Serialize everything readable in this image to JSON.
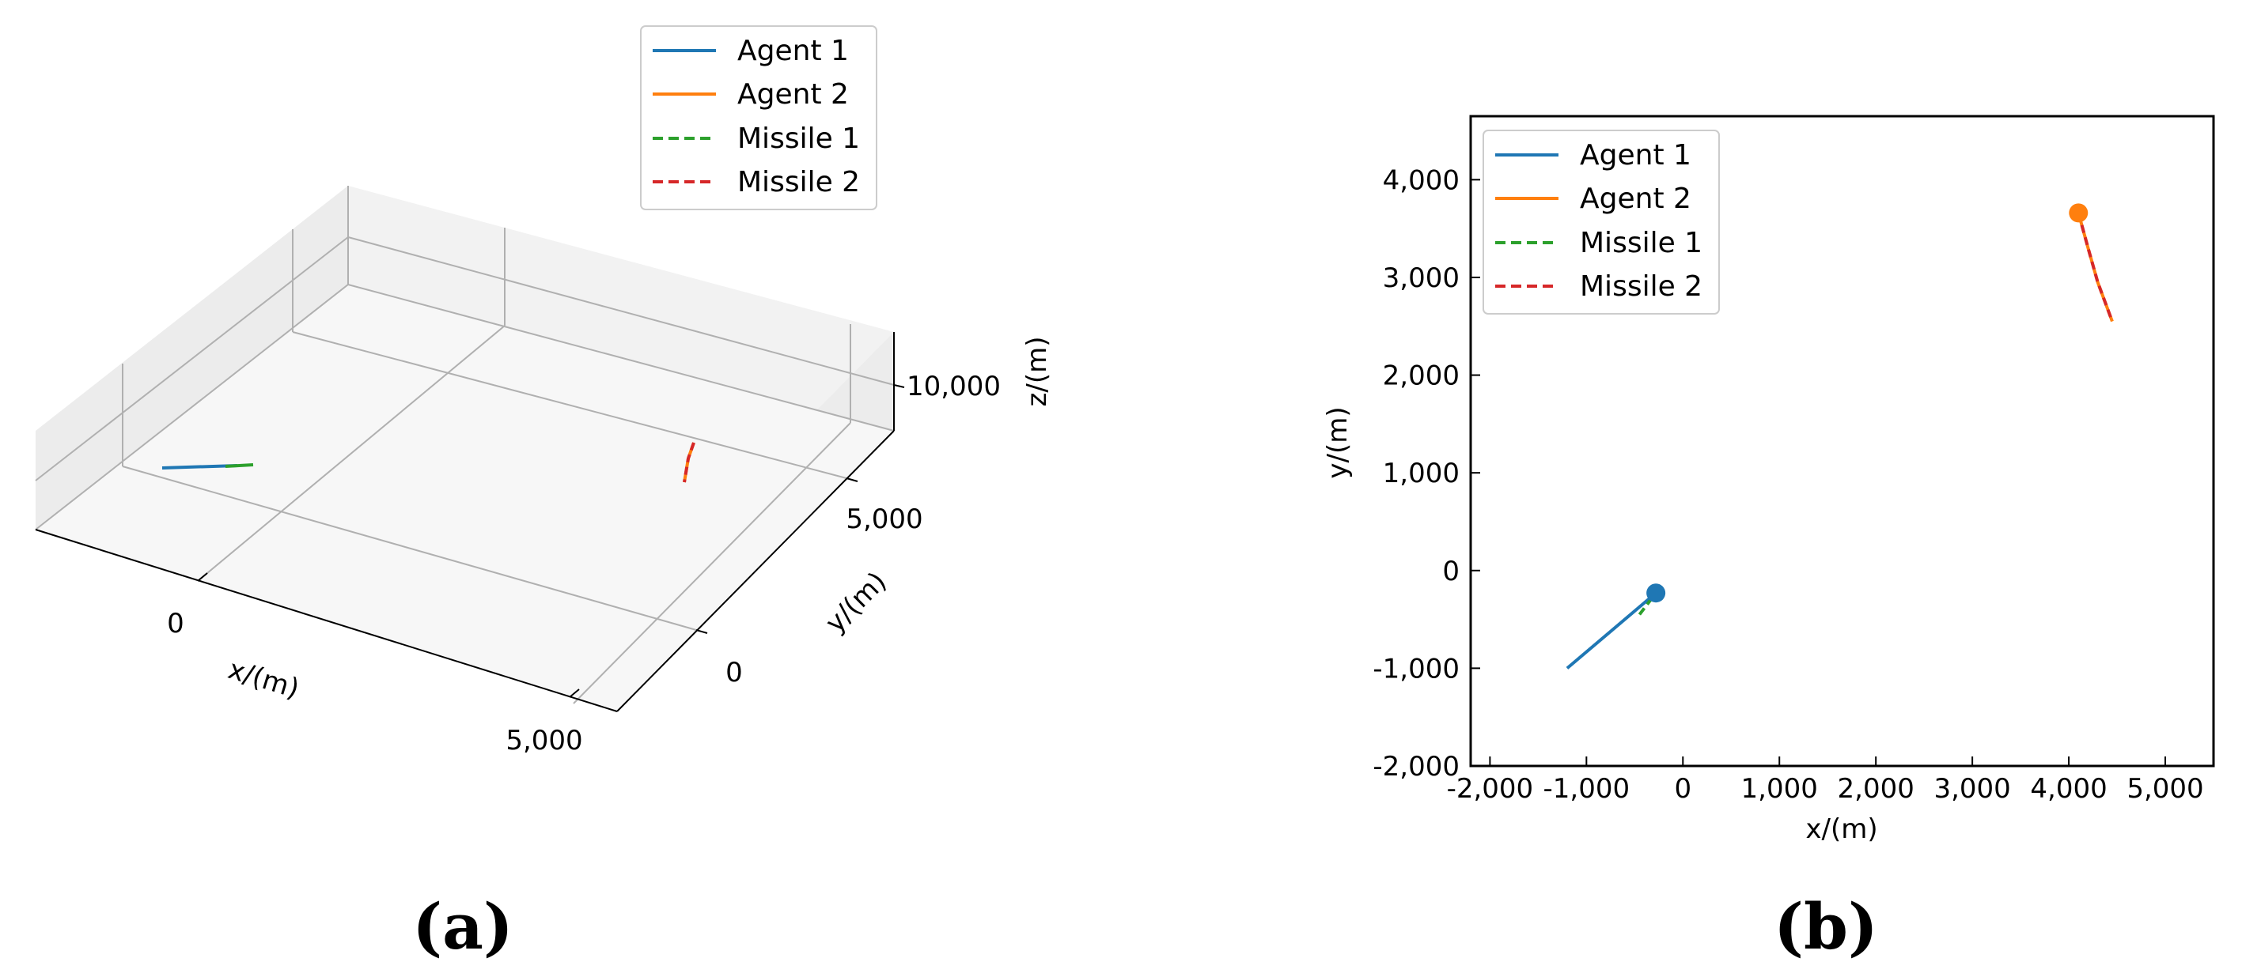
{
  "chart_data": [
    {
      "panel": "(a)",
      "type": "line",
      "projection": "3d",
      "xlabel": "x/(m)",
      "ylabel": "y/(m)",
      "zlabel": "z/(m)",
      "x_ticks": [
        "0",
        "5,000"
      ],
      "y_ticks": [
        "0",
        "5,000"
      ],
      "z_ticks": [
        "10,000"
      ],
      "legend": {
        "placement": "top-center",
        "entries": [
          {
            "label": "Agent 1",
            "color": "#1f77b4",
            "style": "solid"
          },
          {
            "label": "Agent 2",
            "color": "#ff7f0e",
            "style": "solid"
          },
          {
            "label": "Missile 1",
            "color": "#2ca02c",
            "style": "dashed"
          },
          {
            "label": "Missile 2",
            "color": "#d62728",
            "style": "dashed"
          }
        ]
      },
      "series": [
        {
          "name": "Agent 1",
          "color": "#1f77b4",
          "style": "solid",
          "x": [
            -1200,
            -280
          ],
          "y": [
            -1000,
            -230
          ],
          "z": [
            6000,
            6000
          ]
        },
        {
          "name": "Missile 1",
          "color": "#2ca02c",
          "style": "dashed",
          "x": [
            -450,
            -280
          ],
          "y": [
            -450,
            -230
          ],
          "z": [
            6000,
            6000
          ]
        },
        {
          "name": "Agent 2",
          "color": "#ff7f0e",
          "style": "solid",
          "x": [
            4100,
            4300,
            4450
          ],
          "y": [
            3660,
            2950,
            2550
          ],
          "z": [
            6000,
            6000,
            6000
          ]
        },
        {
          "name": "Missile 2",
          "color": "#d62728",
          "style": "dashed",
          "x": [
            4100,
            4300,
            4450
          ],
          "y": [
            3660,
            2950,
            2550
          ],
          "z": [
            6000,
            6000,
            6000
          ]
        }
      ]
    },
    {
      "panel": "(b)",
      "type": "line",
      "xlabel": "x/(m)",
      "ylabel": "y/(m)",
      "xlim": [
        -2200,
        5500
      ],
      "ylim": [
        -2000,
        4650
      ],
      "x_ticks": [
        -2000,
        -1000,
        0,
        1000,
        2000,
        3000,
        4000,
        5000
      ],
      "x_tick_labels": [
        "-2,000",
        "-1,000",
        "0",
        "1,000",
        "2,000",
        "3,000",
        "4,000",
        "5,000"
      ],
      "y_ticks": [
        -2000,
        -1000,
        0,
        1000,
        2000,
        3000,
        4000
      ],
      "y_tick_labels": [
        "-2,000",
        "-1,000",
        "0",
        "1,000",
        "2,000",
        "3,000",
        "4,000"
      ],
      "legend": {
        "placement": "top-left",
        "entries": [
          {
            "label": "Agent 1",
            "color": "#1f77b4",
            "style": "solid"
          },
          {
            "label": "Agent 2",
            "color": "#ff7f0e",
            "style": "solid"
          },
          {
            "label": "Missile 1",
            "color": "#2ca02c",
            "style": "dashed"
          },
          {
            "label": "Missile 2",
            "color": "#d62728",
            "style": "dashed"
          }
        ]
      },
      "series": [
        {
          "name": "Agent 1",
          "color": "#1f77b4",
          "style": "solid",
          "x": [
            -1200,
            -280
          ],
          "y": [
            -1000,
            -230
          ]
        },
        {
          "name": "Missile 1",
          "color": "#2ca02c",
          "style": "dashed",
          "x": [
            -450,
            -280
          ],
          "y": [
            -450,
            -230
          ]
        },
        {
          "name": "Agent 2",
          "color": "#ff7f0e",
          "style": "solid",
          "x": [
            4100,
            4200,
            4300,
            4450
          ],
          "y": [
            3660,
            3300,
            2950,
            2550
          ]
        },
        {
          "name": "Missile 2",
          "color": "#d62728",
          "style": "dashed",
          "x": [
            4100,
            4200,
            4300,
            4450
          ],
          "y": [
            3660,
            3300,
            2950,
            2550
          ]
        }
      ],
      "markers": [
        {
          "name": "Agent 1 position",
          "color": "#1f77b4",
          "x": -280,
          "y": -230
        },
        {
          "name": "Agent 2 position",
          "color": "#ff7f0e",
          "x": 4100,
          "y": 3660
        }
      ]
    }
  ],
  "panel_labels": {
    "a": "(a)",
    "b": "(b)"
  }
}
